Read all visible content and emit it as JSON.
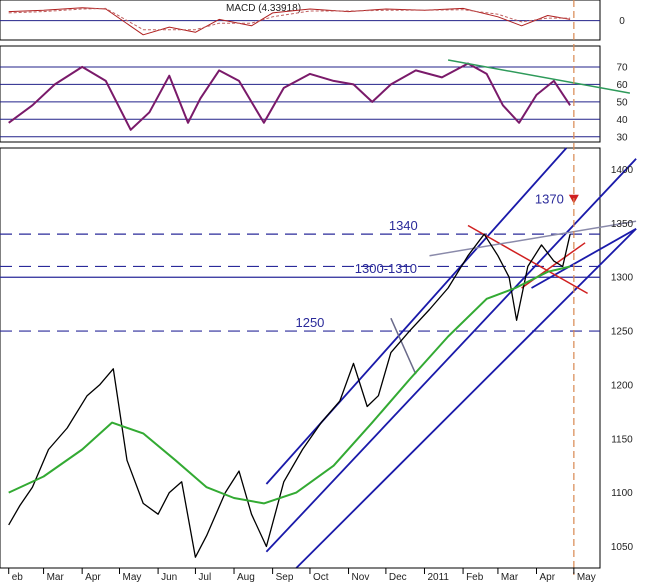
{
  "chart_data": [
    {
      "type": "line",
      "panel": "macd",
      "title": "MACD (4.33918)",
      "series": [
        {
          "name": "MACD",
          "color": "#b02020",
          "x": [
            "2010-02-01",
            "2010-03-01",
            "2010-04-01",
            "2010-04-20",
            "2010-05-20",
            "2010-06-10",
            "2010-07-01",
            "2010-07-20",
            "2010-08-15",
            "2010-09-01",
            "2010-10-01",
            "2010-11-01",
            "2010-12-01",
            "2011-01-01",
            "2011-02-01",
            "2011-03-01",
            "2011-03-20",
            "2011-04-10",
            "2011-04-28"
          ],
          "values": [
            14,
            16,
            20,
            18,
            -22,
            -10,
            -18,
            2,
            -8,
            12,
            18,
            14,
            18,
            16,
            19,
            6,
            -8,
            8,
            2
          ]
        },
        {
          "name": "Signal",
          "color": "#c06060",
          "x": [
            "2010-02-01",
            "2010-03-01",
            "2010-04-01",
            "2010-04-20",
            "2010-05-20",
            "2010-06-10",
            "2010-07-01",
            "2010-07-20",
            "2010-08-15",
            "2010-09-01",
            "2010-10-01",
            "2010-11-01",
            "2010-12-01",
            "2011-01-01",
            "2011-02-01",
            "2011-03-01",
            "2011-03-20",
            "2011-04-10",
            "2011-04-28"
          ],
          "values": [
            12,
            14,
            18,
            19,
            -14,
            -14,
            -14,
            -4,
            -4,
            6,
            15,
            15,
            16,
            16,
            17,
            10,
            -2,
            4,
            4
          ]
        }
      ],
      "ticks": [
        {
          "value": 0,
          "label": "0"
        }
      ],
      "ylim": [
        -30,
        32
      ]
    },
    {
      "type": "line",
      "panel": "oscillator",
      "title": "",
      "series": [
        {
          "name": "Oscillator",
          "color": "#7a1a6a",
          "x": [
            "2010-02-01",
            "2010-02-20",
            "2010-03-10",
            "2010-04-01",
            "2010-04-20",
            "2010-05-10",
            "2010-05-25",
            "2010-06-10",
            "2010-06-25",
            "2010-07-05",
            "2010-07-20",
            "2010-08-05",
            "2010-08-25",
            "2010-09-10",
            "2010-10-01",
            "2010-10-20",
            "2010-11-05",
            "2010-11-20",
            "2010-12-05",
            "2010-12-25",
            "2011-01-15",
            "2011-02-05",
            "2011-02-20",
            "2011-03-05",
            "2011-03-18",
            "2011-04-01",
            "2011-04-15",
            "2011-04-28"
          ],
          "values": [
            38,
            48,
            60,
            70,
            62,
            34,
            44,
            65,
            38,
            52,
            68,
            62,
            38,
            58,
            66,
            62,
            60,
            50,
            60,
            68,
            64,
            72,
            66,
            48,
            38,
            54,
            62,
            48
          ]
        },
        {
          "name": "Trend",
          "color": "#2e9a5a",
          "x": [
            "2011-01-20",
            "2011-06-15"
          ],
          "values": [
            74,
            55
          ]
        }
      ],
      "ticks": [
        {
          "value": 70,
          "label": "70"
        },
        {
          "value": 60,
          "label": "60"
        },
        {
          "value": 50,
          "label": "50"
        },
        {
          "value": 40,
          "label": "40"
        },
        {
          "value": 30,
          "label": "30"
        }
      ],
      "ylim": [
        27,
        82
      ]
    },
    {
      "type": "line",
      "panel": "price",
      "title": "",
      "series": [
        {
          "name": "Price",
          "color": "#000000",
          "x": [
            "2010-02-01",
            "2010-02-10",
            "2010-02-20",
            "2010-03-05",
            "2010-03-20",
            "2010-04-05",
            "2010-04-15",
            "2010-04-26",
            "2010-05-07",
            "2010-05-20",
            "2010-06-01",
            "2010-06-10",
            "2010-06-20",
            "2010-07-01",
            "2010-07-10",
            "2010-07-25",
            "2010-08-05",
            "2010-08-15",
            "2010-08-27",
            "2010-09-10",
            "2010-09-25",
            "2010-10-10",
            "2010-10-25",
            "2010-11-05",
            "2010-11-16",
            "2010-11-25",
            "2010-12-05",
            "2010-12-20",
            "2011-01-05",
            "2011-01-20",
            "2011-02-05",
            "2011-02-18",
            "2011-03-01",
            "2011-03-10",
            "2011-03-16",
            "2011-03-25",
            "2011-04-05",
            "2011-04-15",
            "2011-04-22",
            "2011-04-28"
          ],
          "values": [
            1070,
            1088,
            1105,
            1140,
            1160,
            1190,
            1200,
            1215,
            1130,
            1090,
            1080,
            1100,
            1110,
            1040,
            1060,
            1100,
            1120,
            1080,
            1050,
            1110,
            1140,
            1165,
            1185,
            1220,
            1180,
            1190,
            1230,
            1250,
            1270,
            1290,
            1320,
            1340,
            1320,
            1300,
            1260,
            1310,
            1330,
            1315,
            1310,
            1340
          ]
        },
        {
          "name": "Moving average",
          "color": "#33aa33",
          "x": [
            "2010-02-01",
            "2010-03-01",
            "2010-04-01",
            "2010-04-25",
            "2010-05-20",
            "2010-06-15",
            "2010-07-10",
            "2010-08-01",
            "2010-08-25",
            "2010-09-20",
            "2010-10-20",
            "2010-11-20",
            "2010-12-20",
            "2011-01-20",
            "2011-02-20",
            "2011-03-15",
            "2011-04-10",
            "2011-04-28"
          ],
          "values": [
            1100,
            1115,
            1140,
            1165,
            1155,
            1130,
            1105,
            1095,
            1090,
            1100,
            1125,
            1165,
            1205,
            1245,
            1280,
            1290,
            1305,
            1310
          ]
        }
      ],
      "ticks": [
        {
          "value": 1400,
          "label": "1400"
        },
        {
          "value": 1350,
          "label": "1350"
        },
        {
          "value": 1300,
          "label": "1300"
        },
        {
          "value": 1250,
          "label": "1250"
        },
        {
          "value": 1200,
          "label": "1200"
        },
        {
          "value": 1150,
          "label": "1150"
        },
        {
          "value": 1100,
          "label": "1100"
        },
        {
          "value": 1050,
          "label": "1050"
        }
      ],
      "ylim": [
        1030,
        1420
      ],
      "levels": [
        {
          "value": 1340,
          "label": "1340",
          "dashed": true,
          "label_x": "2010-12-15"
        },
        {
          "value": 1310,
          "label": "",
          "dashed": true,
          "label_x": "2010-12-01"
        },
        {
          "value": 1300,
          "label": "1300-1310",
          "dashed": false,
          "label_x": "2010-12-01"
        },
        {
          "value": 1250,
          "label": "1250",
          "dashed": true,
          "label_x": "2010-10-01"
        }
      ],
      "channel": {
        "color": "#1a1aaa",
        "lines": [
          {
            "x": [
              "2010-08-27",
              "2011-04-25"
            ],
            "values": [
              1108,
              1420
            ]
          },
          {
            "x": [
              "2010-08-27",
              "2011-06-20"
            ],
            "values": [
              1045,
              1410
            ]
          },
          {
            "x": [
              "2010-09-20",
              "2011-06-20"
            ],
            "values": [
              1030,
              1345
            ]
          },
          {
            "x": [
              "2011-03-28",
              "2011-06-20"
            ],
            "values": [
              1290,
              1345
            ]
          }
        ]
      },
      "annotations": [
        {
          "type": "target",
          "label": "1370",
          "x": "2011-05-01",
          "value": 1372,
          "color": "#d02020"
        },
        {
          "type": "line",
          "color": "#d02020",
          "x": [
            "2011-02-05",
            "2011-05-12"
          ],
          "values": [
            1348,
            1285
          ]
        },
        {
          "type": "line",
          "color": "#d02020",
          "x": [
            "2011-03-20",
            "2011-05-10"
          ],
          "values": [
            1290,
            1332
          ]
        },
        {
          "type": "line",
          "color": "#8a8aaa",
          "x": [
            "2011-01-05",
            "2011-06-20"
          ],
          "values": [
            1320,
            1352
          ]
        },
        {
          "type": "line",
          "color": "#6a6a8a",
          "x": [
            "2010-12-05",
            "2010-12-25"
          ],
          "values": [
            1262,
            1210
          ]
        },
        {
          "type": "vline",
          "color": "#d88850",
          "x": "2011-05-01",
          "dashed": true
        }
      ],
      "x_ticks": [
        "Feb",
        "Mar",
        "Apr",
        "May",
        "Jun",
        "Jul",
        "Aug",
        "Sep",
        "Oct",
        "Nov",
        "Dec",
        "2011",
        "Feb",
        "Mar",
        "Apr",
        "May"
      ]
    }
  ],
  "x_axis": {
    "start": "2010-01-25",
    "end": "2011-05-22",
    "ticks": [
      {
        "date": "2010-02-01",
        "label": "eb"
      },
      {
        "date": "2010-03-01",
        "label": "Mar"
      },
      {
        "date": "2010-04-01",
        "label": "Apr"
      },
      {
        "date": "2010-05-01",
        "label": "May"
      },
      {
        "date": "2010-06-01",
        "label": "Jun"
      },
      {
        "date": "2010-07-01",
        "label": "Jul"
      },
      {
        "date": "2010-08-01",
        "label": "Aug"
      },
      {
        "date": "2010-09-01",
        "label": "Sep"
      },
      {
        "date": "2010-10-01",
        "label": "Oct"
      },
      {
        "date": "2010-11-01",
        "label": "Nov"
      },
      {
        "date": "2010-12-01",
        "label": "Dec"
      },
      {
        "date": "2011-01-01",
        "label": "2011"
      },
      {
        "date": "2011-02-01",
        "label": "Feb"
      },
      {
        "date": "2011-03-01",
        "label": "Mar"
      },
      {
        "date": "2011-04-01",
        "label": "Apr"
      },
      {
        "date": "2011-05-01",
        "label": "May"
      }
    ]
  }
}
